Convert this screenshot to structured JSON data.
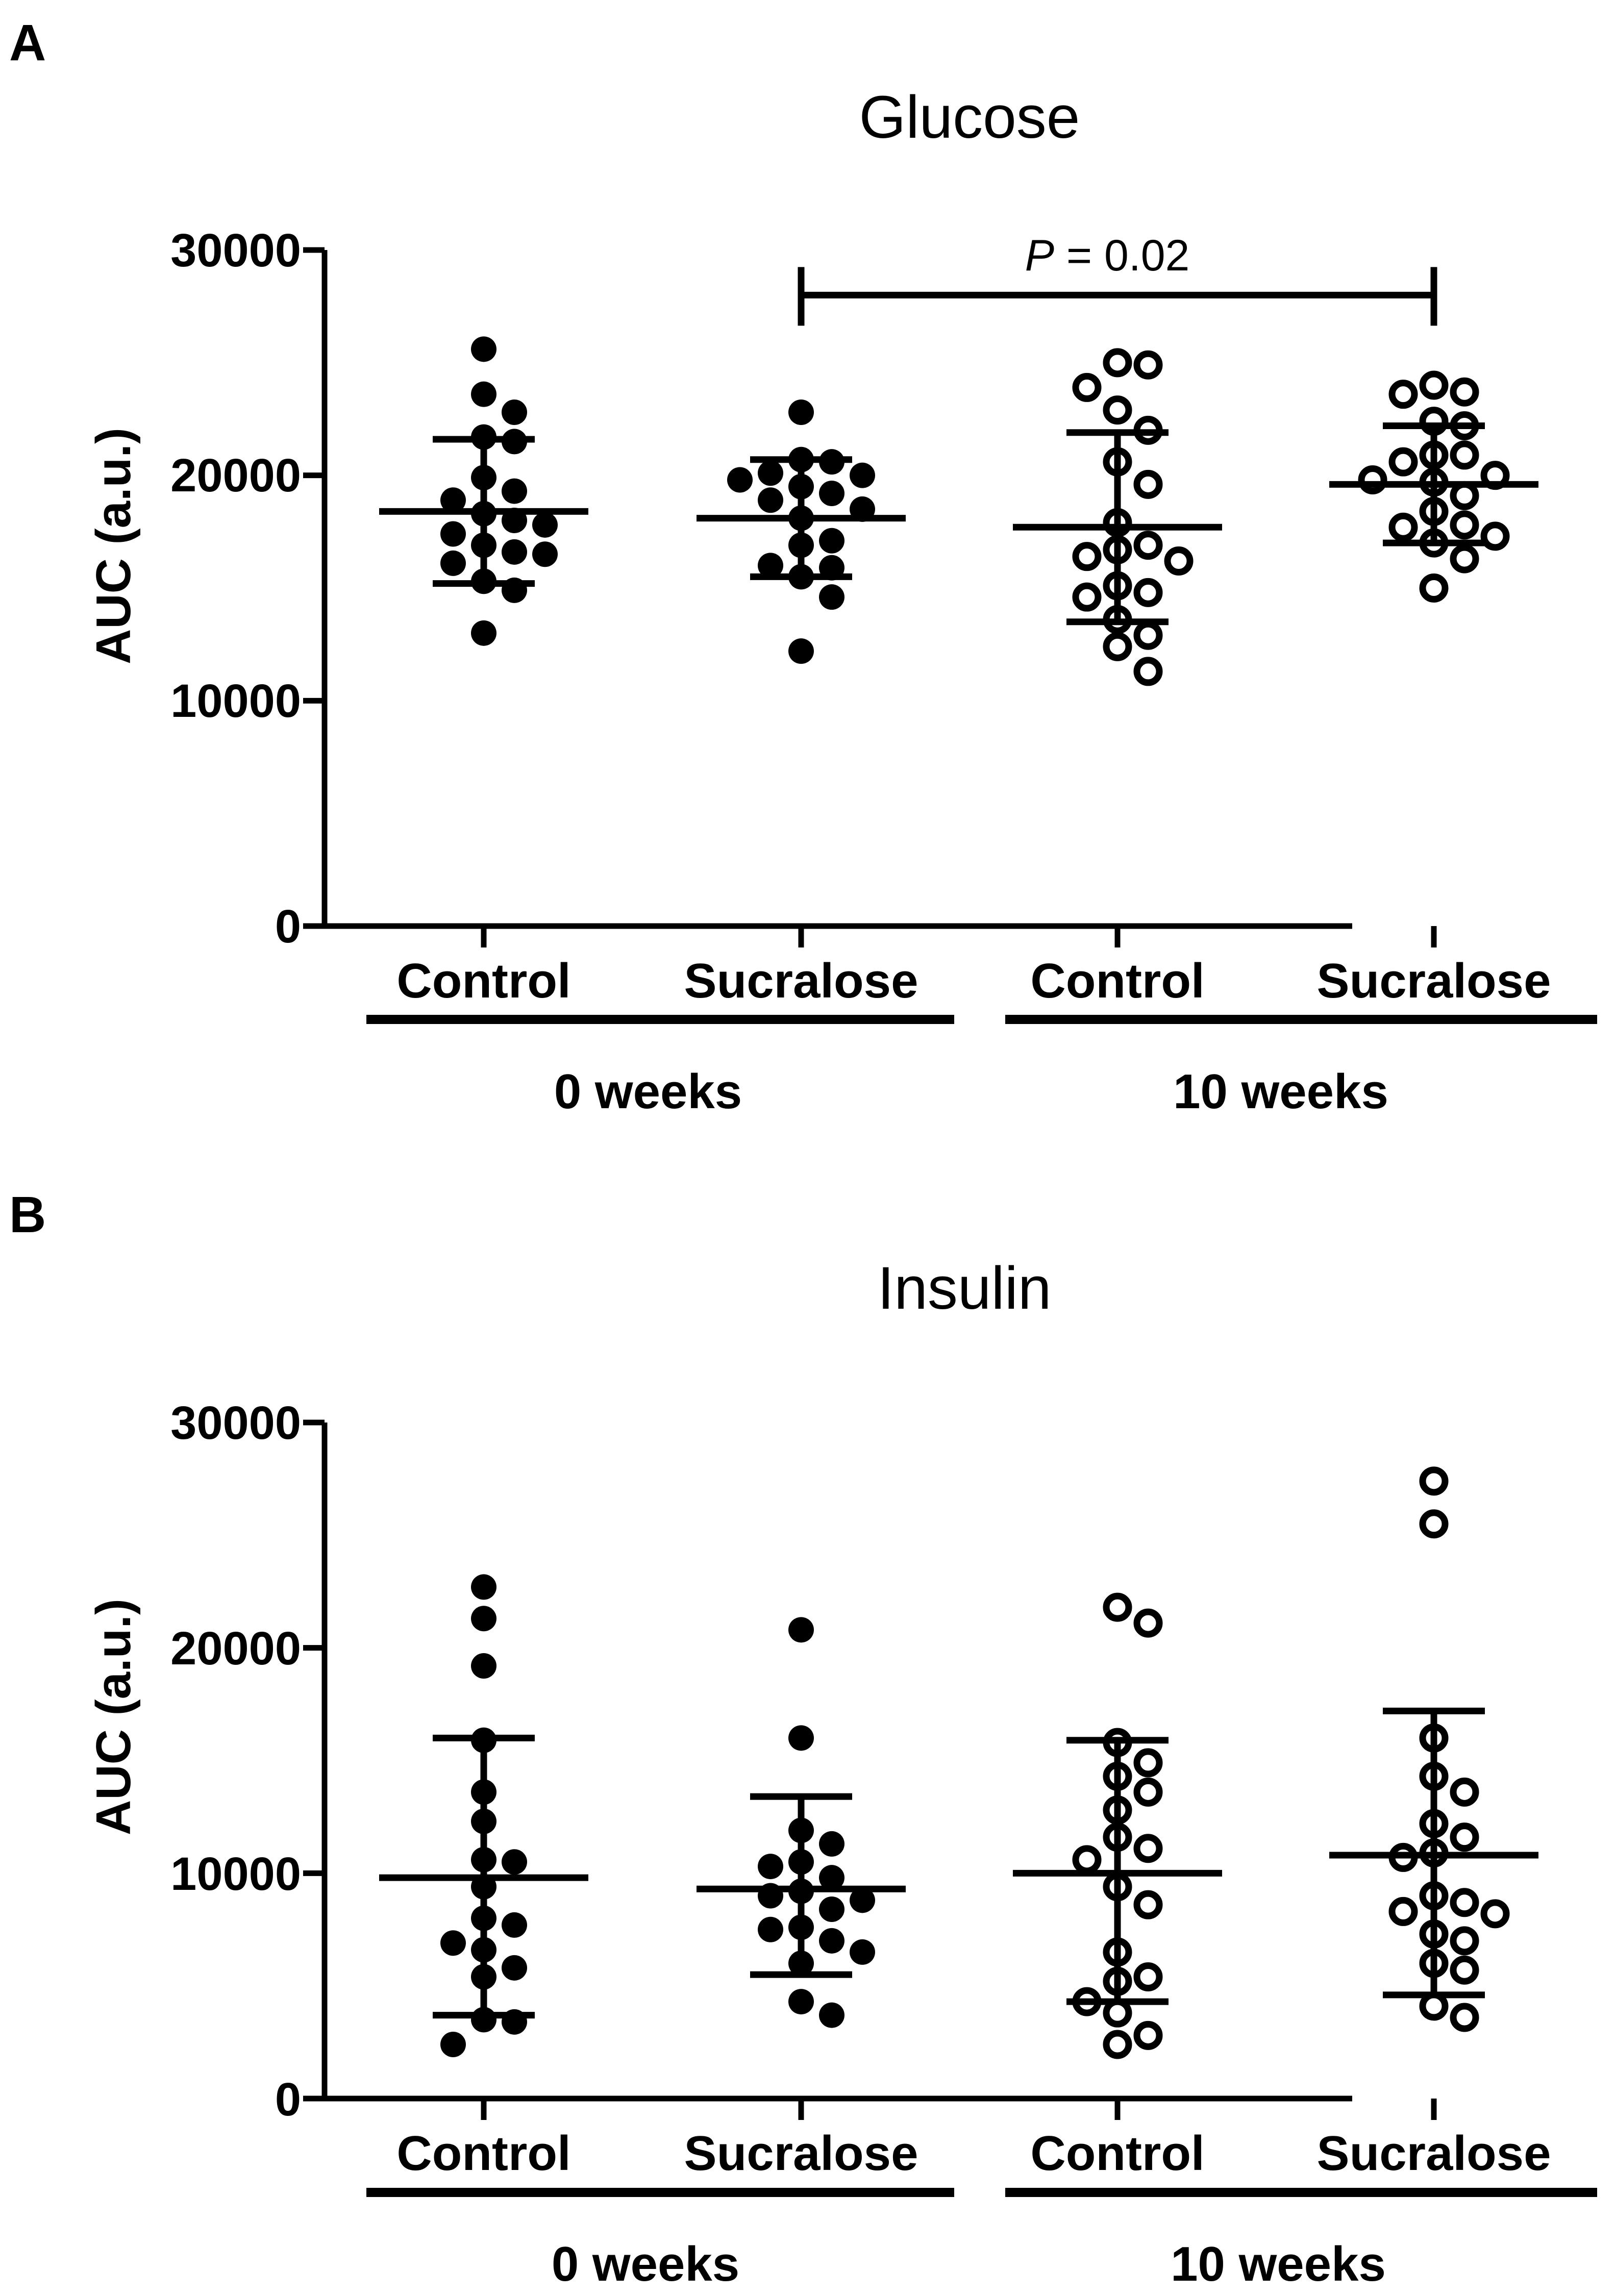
{
  "colors": {
    "ink": "#000000",
    "background": "#ffffff"
  },
  "chart_data": [
    {
      "panel": "A",
      "type": "scatter",
      "title": "Glucose",
      "ylabel": "AUC (a.u.)",
      "xlabel": "",
      "ylim": [
        0,
        30000
      ],
      "yticks": [
        0,
        10000,
        20000,
        30000
      ],
      "grid": false,
      "categories": [
        "Control",
        "Sucralose",
        "Control",
        "Sucralose"
      ],
      "groups": [
        {
          "label": "0 weeks",
          "categories": [
            0,
            1
          ]
        },
        {
          "label": "10 weeks",
          "categories": [
            2,
            3
          ]
        }
      ],
      "annotation": {
        "prefix": "P",
        "text": " = 0.02",
        "between": [
          1,
          3
        ],
        "y": 28000
      },
      "series": [
        {
          "name": "Control 0 weeks",
          "marker": "filled",
          "mean": 18400,
          "sd_low": 15200,
          "sd_high": 21600,
          "values": [
            25600,
            23600,
            22800,
            21700,
            21500,
            19900,
            19300,
            18900,
            18300,
            18000,
            17800,
            17400,
            16900,
            16600,
            16500,
            16100,
            15300,
            14900,
            13000
          ]
        },
        {
          "name": "Sucralose 0 weeks",
          "marker": "filled",
          "mean": 18100,
          "sd_low": 15500,
          "sd_high": 20700,
          "values": [
            22800,
            20700,
            20600,
            20100,
            20000,
            19800,
            19500,
            19200,
            18900,
            18500,
            18100,
            17100,
            16900,
            16000,
            15900,
            15500,
            14600,
            12200
          ]
        },
        {
          "name": "Control 10 weeks",
          "marker": "open",
          "mean": 17700,
          "sd_low": 13500,
          "sd_high": 21900,
          "values": [
            25000,
            24900,
            23900,
            22900,
            22000,
            20600,
            19600,
            17900,
            16900,
            16700,
            16400,
            16200,
            15100,
            14800,
            14600,
            13600,
            12900,
            12400,
            11300
          ]
        },
        {
          "name": "Sucralose 10 weeks",
          "marker": "open",
          "mean": 19600,
          "sd_low": 17000,
          "sd_high": 22200,
          "values": [
            24000,
            23700,
            23600,
            22400,
            22200,
            20900,
            20900,
            20600,
            20000,
            19800,
            19700,
            19100,
            18400,
            17800,
            17700,
            17300,
            17000,
            16300,
            15000
          ]
        }
      ]
    },
    {
      "panel": "B",
      "type": "scatter",
      "title": "Insulin",
      "ylabel": "AUC (a.u.)",
      "xlabel": "",
      "ylim": [
        0,
        30000
      ],
      "yticks": [
        0,
        10000,
        20000,
        30000
      ],
      "grid": false,
      "categories": [
        "Control",
        "Sucralose",
        "Control",
        "Sucralose"
      ],
      "groups": [
        {
          "label": "0 weeks",
          "categories": [
            0,
            1
          ]
        },
        {
          "label": "10 weeks",
          "categories": [
            2,
            3
          ]
        }
      ],
      "series": [
        {
          "name": "Control 0 weeks",
          "marker": "filled",
          "mean": 9800,
          "sd_low": 3700,
          "sd_high": 16000,
          "values": [
            22700,
            21300,
            19200,
            15900,
            13600,
            12300,
            10600,
            10500,
            9400,
            8000,
            7700,
            6900,
            6600,
            5800,
            5400,
            3500,
            3400,
            2400
          ]
        },
        {
          "name": "Sucralose 0 weeks",
          "marker": "filled",
          "mean": 9300,
          "sd_low": 5500,
          "sd_high": 13400,
          "values": [
            20800,
            16000,
            11900,
            11300,
            10500,
            10300,
            9800,
            9200,
            9000,
            8800,
            8400,
            7600,
            7500,
            7000,
            6500,
            6000,
            4300,
            3700
          ]
        },
        {
          "name": "Control 10 weeks",
          "marker": "open",
          "mean": 10000,
          "sd_low": 4300,
          "sd_high": 15900,
          "values": [
            21800,
            21100,
            15800,
            14900,
            14300,
            13600,
            12800,
            11600,
            11100,
            10600,
            9400,
            8600,
            6500,
            5400,
            5200,
            4300,
            3800,
            2800,
            2400
          ]
        },
        {
          "name": "Sucralose 10 weeks",
          "marker": "open",
          "mean": 10800,
          "sd_low": 4600,
          "sd_high": 17200,
          "values": [
            27400,
            25500,
            16000,
            14300,
            13600,
            12200,
            11600,
            10900,
            10700,
            9000,
            8700,
            8300,
            8200,
            7300,
            7000,
            6000,
            5700,
            4100,
            3600
          ]
        }
      ]
    }
  ]
}
